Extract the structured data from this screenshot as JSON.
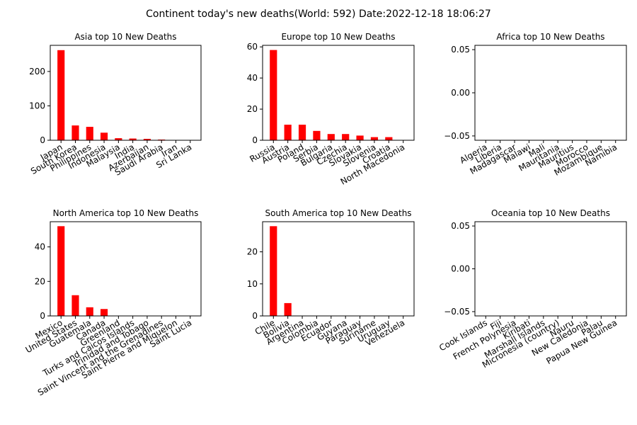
{
  "title": "Continent today's new deaths(World: 592) Date:2022-12-18 18:06:27",
  "colors": {
    "bar": "#ff0000",
    "axis": "#000000",
    "background": "#ffffff"
  },
  "chart_data": [
    {
      "type": "bar",
      "title": "Asia top 10 New Deaths",
      "categories": [
        "Japan",
        "South Korea",
        "Philippines",
        "Indonesia",
        "Malaysia",
        "India",
        "Azerbaijan",
        "Saudi Arabia",
        "Iran",
        "Sri Lanka"
      ],
      "values": [
        262,
        43,
        39,
        22,
        6,
        5,
        4,
        2,
        1,
        1
      ],
      "ylim": [
        0,
        276
      ],
      "yticks": [
        0,
        100,
        200
      ],
      "ytick_labels": [
        "0",
        "100",
        "200"
      ]
    },
    {
      "type": "bar",
      "title": "Europe top 10 New Deaths",
      "categories": [
        "Russia",
        "Austria",
        "Poland",
        "Serbia",
        "Bulgaria",
        "Czechia",
        "Slovakia",
        "Slovenia",
        "Croatia",
        "North Macedonia"
      ],
      "values": [
        58,
        10,
        10,
        6,
        4,
        4,
        3,
        2,
        2,
        0
      ],
      "ylim": [
        0,
        61
      ],
      "yticks": [
        0,
        20,
        40,
        60
      ],
      "ytick_labels": [
        "0",
        "20",
        "40",
        "60"
      ]
    },
    {
      "type": "bar",
      "title": "Africa top 10 New Deaths",
      "categories": [
        "Algeria",
        "Liberia",
        "Madagascar",
        "Malawi",
        "Mali",
        "Mauritania",
        "Mauritius",
        "Morocco",
        "Mozambique",
        "Namibia"
      ],
      "values": [
        0,
        0,
        0,
        0,
        0,
        0,
        0,
        0,
        0,
        0
      ],
      "ylim": [
        -0.055,
        0.055
      ],
      "yticks": [
        -0.05,
        0,
        0.05
      ],
      "ytick_labels": [
        "−0.05",
        "0.00",
        "0.05"
      ]
    },
    {
      "type": "bar",
      "title": "North America top 10 New Deaths",
      "categories": [
        "Mexico",
        "United States",
        "Guatemala",
        "Canada",
        "Greenland",
        "Turks and Caicos Islands",
        "Trinidad and Tobago",
        "Saint Vincent and the Grenadines",
        "Saint Pierre and Miquelon",
        "Saint Lucia"
      ],
      "values": [
        52,
        12,
        5,
        4,
        0,
        0,
        0,
        0,
        0,
        0
      ],
      "ylim": [
        0,
        54.6
      ],
      "yticks": [
        0,
        20,
        40
      ],
      "ytick_labels": [
        "0",
        "20",
        "40"
      ]
    },
    {
      "type": "bar",
      "title": "South America top 10 New Deaths",
      "categories": [
        "Chile",
        "Bolivia",
        "Argentina",
        "Colombia",
        "Ecuador",
        "Guyana",
        "Paraguay",
        "Suriname",
        "Uruguay",
        "Venezuela"
      ],
      "values": [
        28,
        4,
        0,
        0,
        0,
        0,
        0,
        0,
        0,
        0
      ],
      "ylim": [
        0,
        29.4
      ],
      "yticks": [
        0,
        10,
        20
      ],
      "ytick_labels": [
        "0",
        "10",
        "20"
      ]
    },
    {
      "type": "bar",
      "title": "Oceania top 10 New Deaths",
      "categories": [
        "Cook Islands",
        "Fiji",
        "French Polynesia",
        "Kiribati",
        "Marshall Islands",
        "Micronesia (country)",
        "Nauru",
        "New Caledonia",
        "Palau",
        "Papua New Guinea"
      ],
      "values": [
        0,
        0,
        0,
        0,
        0,
        0,
        0,
        0,
        0,
        0
      ],
      "ylim": [
        -0.055,
        0.055
      ],
      "yticks": [
        -0.05,
        0,
        0.05
      ],
      "ytick_labels": [
        "−0.05",
        "0.00",
        "0.05"
      ]
    }
  ]
}
